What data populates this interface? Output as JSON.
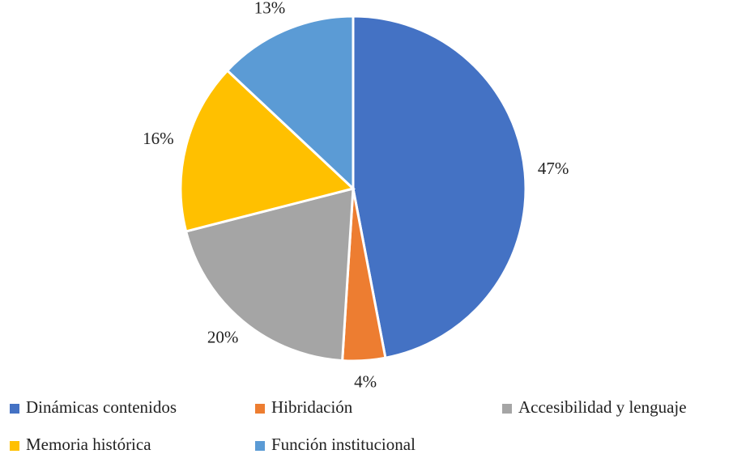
{
  "chart_data": {
    "type": "pie",
    "categories": [
      "Dinámicas contenidos",
      "Hibridación",
      "Accesibilidad y lenguaje",
      "Memoria histórica",
      "Función institucional"
    ],
    "values": [
      47,
      4,
      20,
      16,
      13
    ],
    "value_labels": [
      "47%",
      "4%",
      "20%",
      "16%",
      "13%"
    ],
    "colors": [
      "#4472c4",
      "#ed7d31",
      "#a5a5a5",
      "#ffc000",
      "#5b9bd5"
    ],
    "legend": "bottom"
  }
}
